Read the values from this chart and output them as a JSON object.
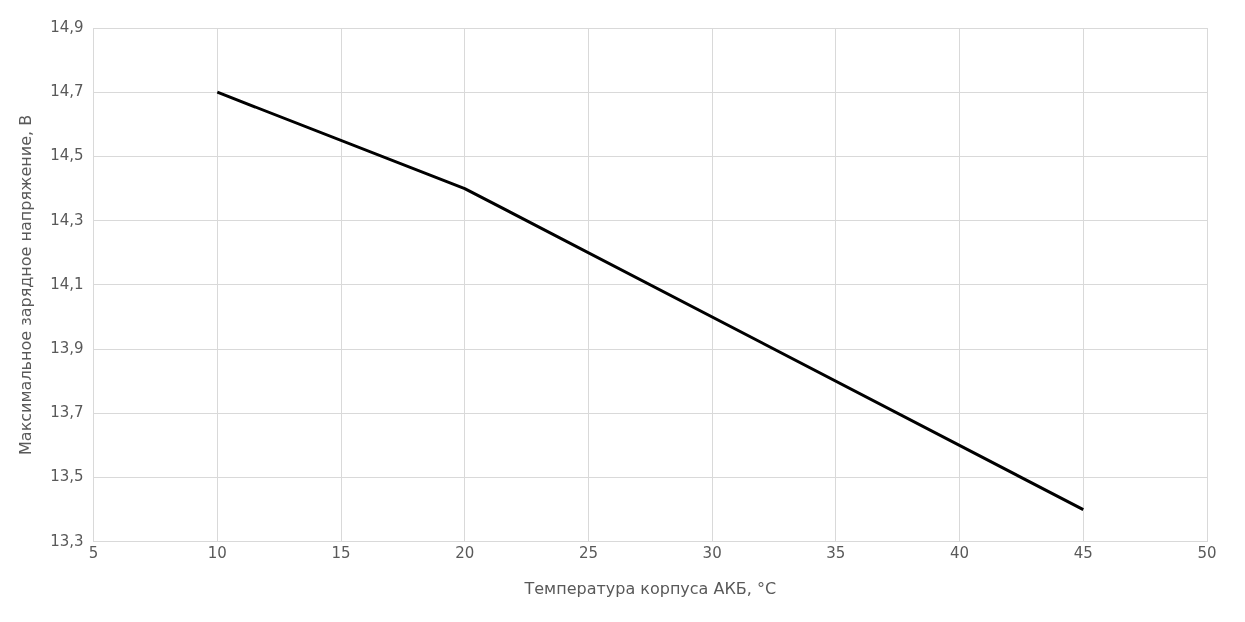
{
  "chart_data": {
    "type": "line",
    "xlabel": "Температура корпуса АКБ, °C",
    "ylabel": "Максимальное зарядное напряжение, В",
    "x": [
      10,
      20,
      45
    ],
    "series": [
      {
        "color": "#000000",
        "values": [
          14.7,
          14.4,
          13.4
        ]
      }
    ],
    "xlim": [
      5,
      50
    ],
    "xticks": [
      5,
      10,
      15,
      20,
      25,
      30,
      35,
      40,
      45,
      50
    ],
    "ylim": [
      13.3,
      14.9
    ],
    "yticks": [
      {
        "value": 13.3,
        "label": "13,3"
      },
      {
        "value": 13.5,
        "label": "13,5"
      },
      {
        "value": 13.7,
        "label": "13,7"
      },
      {
        "value": 13.9,
        "label": "13,9"
      },
      {
        "value": 14.1,
        "label": "14,1"
      },
      {
        "value": 14.3,
        "label": "14,3"
      },
      {
        "value": 14.5,
        "label": "14,5"
      },
      {
        "value": 14.7,
        "label": "14,7"
      },
      {
        "value": 14.9,
        "label": "14,9"
      }
    ],
    "grid": true,
    "legend": false,
    "marker": "none",
    "line_style": "solid"
  }
}
